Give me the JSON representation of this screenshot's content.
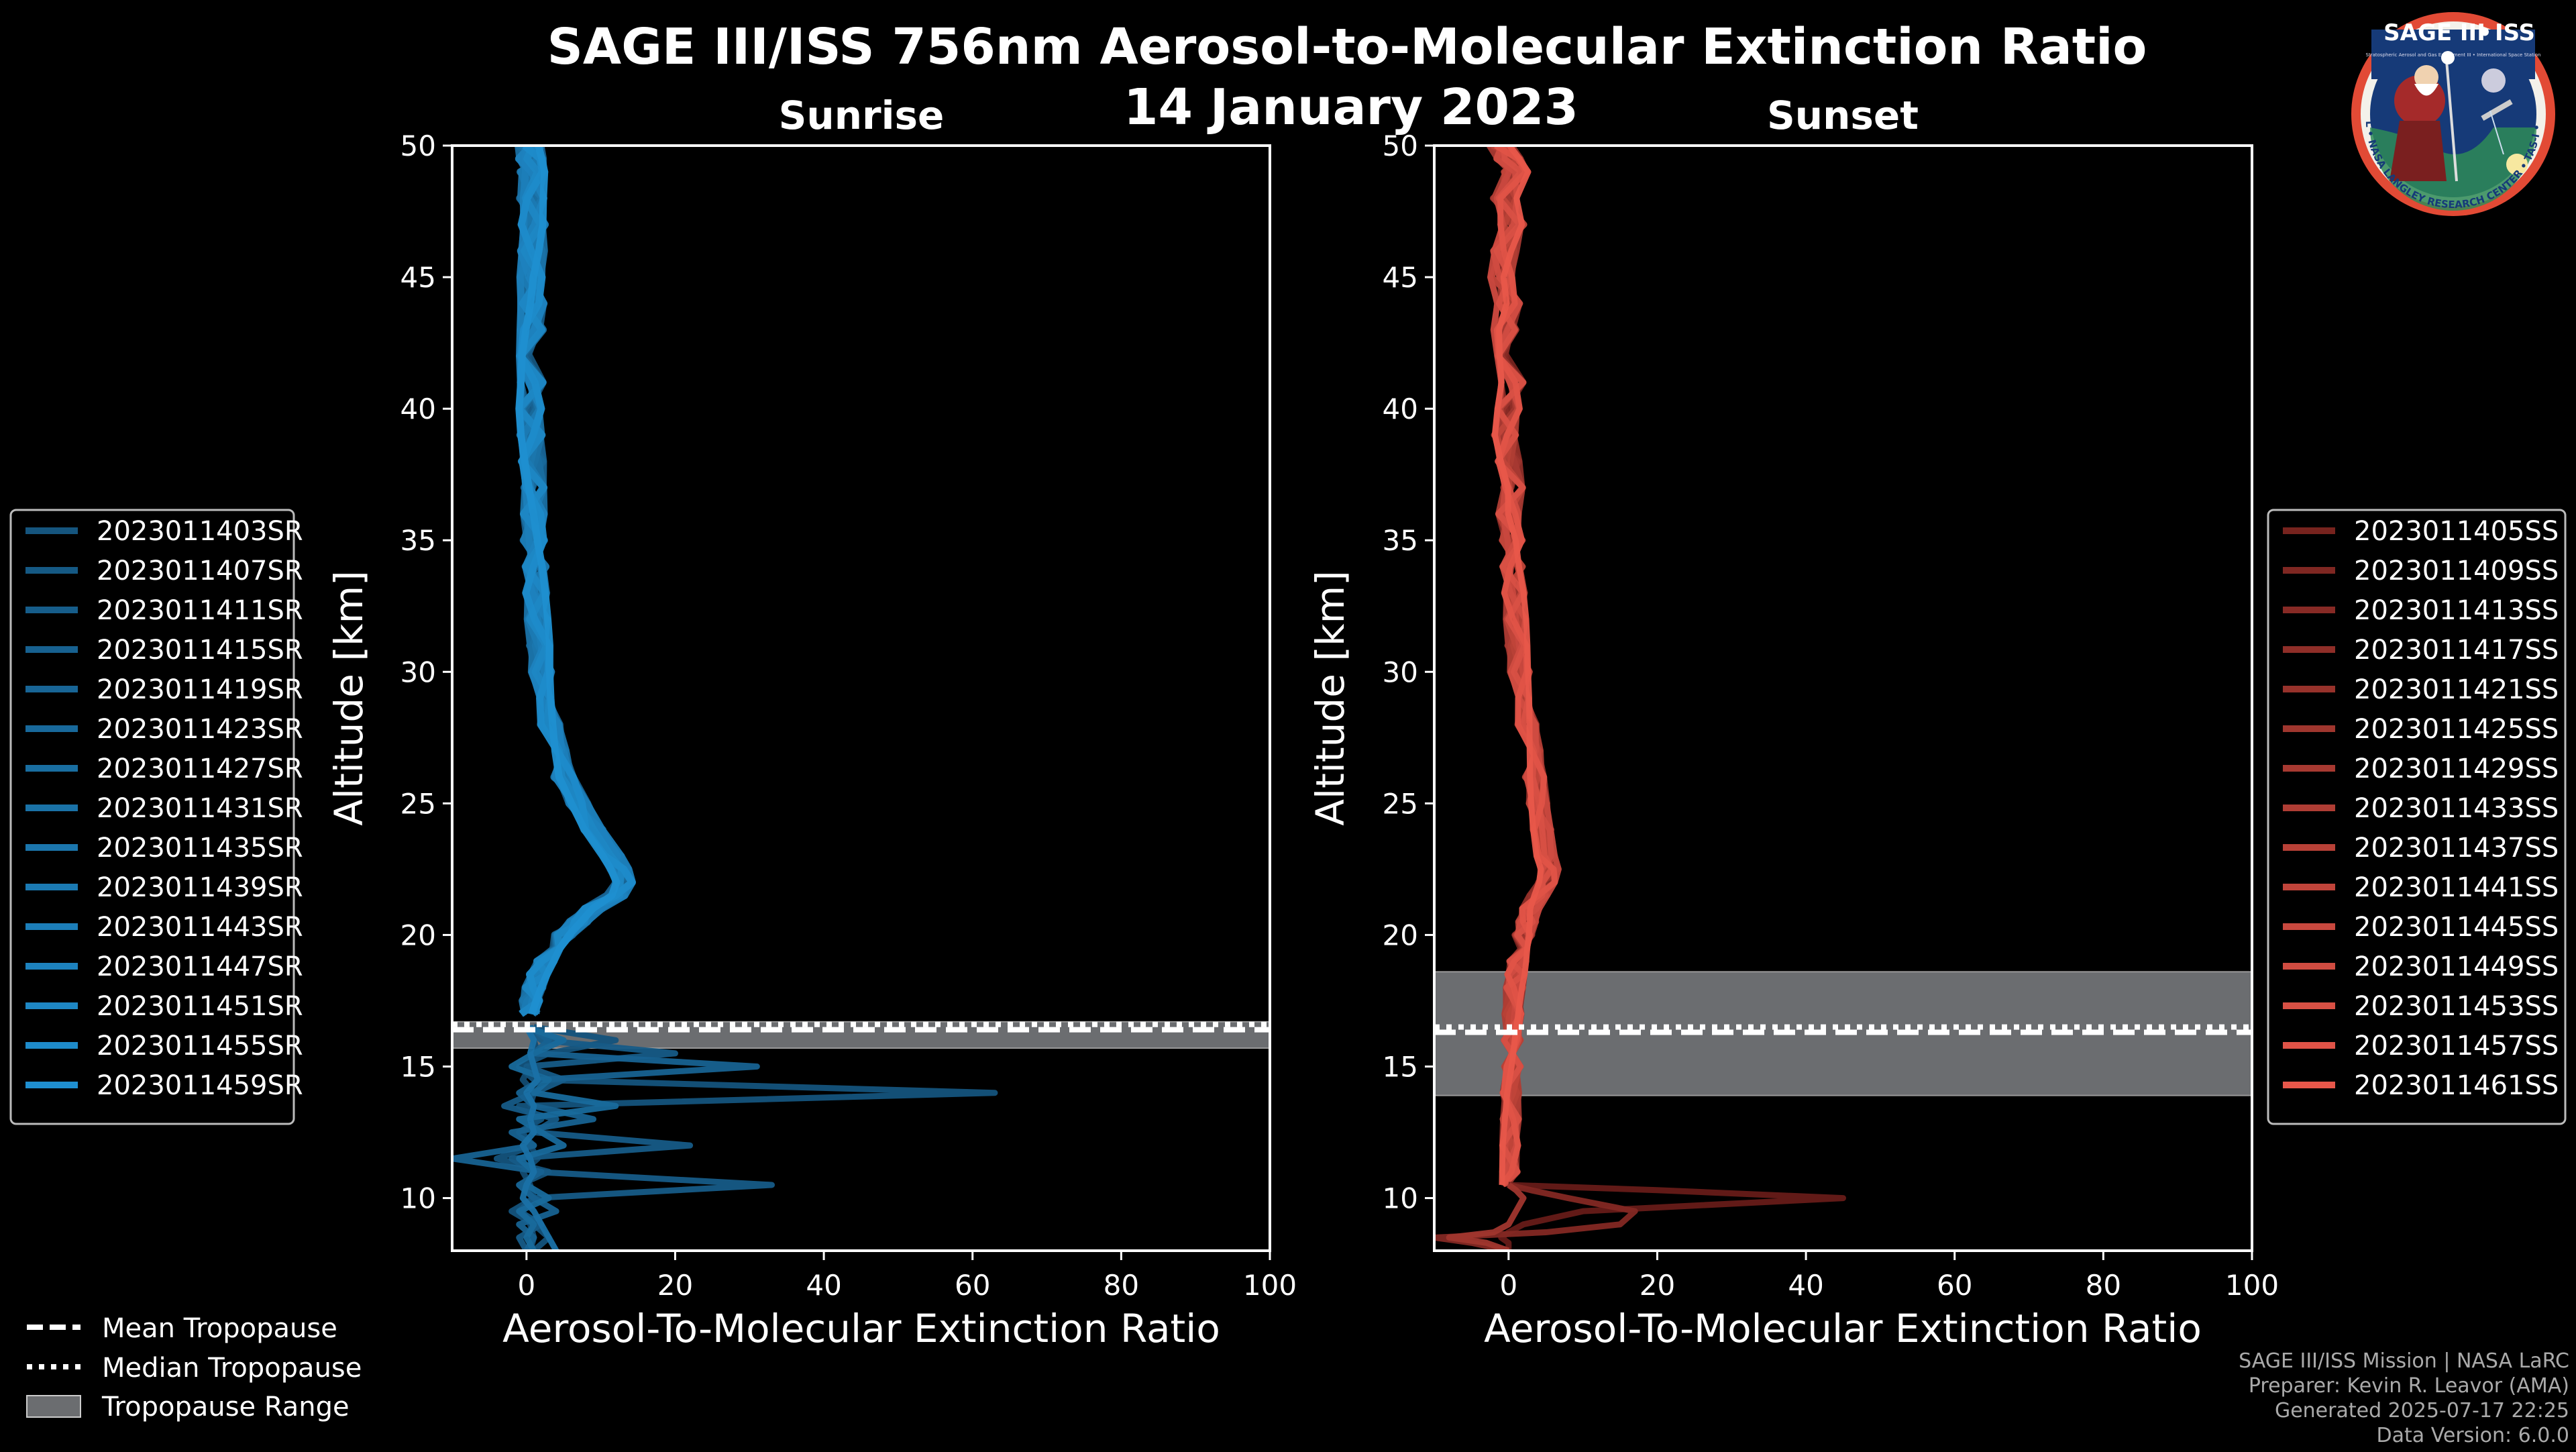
{
  "title": "SAGE III/ISS 756nm Aerosol-to-Molecular Extinction Ratio",
  "date": "14 January 2023",
  "logo": {
    "line1": "SAGE III",
    "sep": "•",
    "line2": "ISS",
    "ring_text": "BALL • NASA LANGLEY RESEARCH CENTER • TAS-I • ESA",
    "stamp_text": "Stratospheric Aerosol and Gas Experiment III • International Space Station"
  },
  "footer": {
    "line1": "SAGE III/ISS Mission | NASA LaRC",
    "line2": "Preparer: Kevin R. Leavor (AMA)",
    "line3": "Generated 2025-07-17 22:25",
    "line4": "Data Version: 6.0.0"
  },
  "tropopause_legend": {
    "mean": "Mean Tropopause",
    "median": "Median Tropopause",
    "range": "Tropopause Range"
  },
  "colors": {
    "sunrise": "#1f8fd0",
    "sunset": "#e8574a",
    "range": "#6b6d70"
  },
  "chart_data": [
    {
      "type": "line",
      "title": "Sunrise",
      "xlabel": "Aerosol-To-Molecular Extinction Ratio",
      "ylabel": "Altitude [km]",
      "xlim": [
        -10,
        100
      ],
      "ylim": [
        8,
        50
      ],
      "xticks": [
        0,
        20,
        40,
        60,
        80,
        100
      ],
      "yticks": [
        10,
        15,
        20,
        25,
        30,
        35,
        40,
        45,
        50
      ],
      "tropopause": {
        "mean": 16.4,
        "median": 16.6,
        "range": [
          15.7,
          16.7
        ]
      },
      "legend": [
        "2023011403SR",
        "2023011407SR",
        "2023011411SR",
        "2023011415SR",
        "2023011419SR",
        "2023011423SR",
        "2023011427SR",
        "2023011431SR",
        "2023011435SR",
        "2023011439SR",
        "2023011443SR",
        "2023011447SR",
        "2023011451SR",
        "2023011455SR",
        "2023011459SR"
      ],
      "profile_altitudes_km": [
        50,
        49.5,
        49,
        48,
        47,
        46,
        45,
        44,
        43,
        42,
        41,
        40,
        39,
        38,
        37,
        36,
        35,
        34,
        33,
        32,
        31,
        30,
        29,
        28,
        27,
        26,
        25,
        24,
        23,
        22.5,
        22,
        21.5,
        21,
        20.5,
        20,
        19.5,
        19,
        18.5,
        18,
        17.5,
        17
      ],
      "profile_values": [
        0.5,
        0.6,
        0.8,
        0.7,
        0.9,
        0.8,
        0.6,
        0.8,
        0.7,
        0.6,
        0.7,
        0.5,
        0.6,
        0.8,
        0.9,
        1,
        1,
        1.2,
        1.3,
        1.5,
        1.8,
        2,
        2.5,
        3.2,
        4,
        5,
        7,
        9,
        11.5,
        12.5,
        13,
        12,
        9,
        7,
        5,
        3.5,
        2.5,
        1.6,
        1,
        0.6,
        0.4
      ],
      "lower_series_km": [
        16.5,
        16,
        15.5,
        15,
        14.5,
        14,
        13.5,
        13,
        12.5,
        12,
        11.5,
        11,
        10.5,
        10,
        9.5,
        9,
        8.5,
        8
      ],
      "lower_series": [
        [
          0.5,
          1,
          1.5,
          0.5,
          -0.5,
          1,
          0.5,
          1.5,
          -0.5,
          0.5,
          1.5,
          -0.5,
          0.5,
          1,
          -0.5,
          0.5,
          1,
          0.5
        ],
        [
          1,
          12,
          3,
          -1,
          1,
          63,
          -1,
          2,
          -1,
          1,
          -4,
          3,
          -1,
          1,
          -2,
          1,
          3,
          1
        ],
        [
          0,
          2,
          20,
          0,
          5,
          1,
          -3,
          4,
          1,
          22,
          -2,
          1,
          33,
          1,
          -1,
          2,
          -1,
          0
        ],
        [
          0.5,
          3,
          1,
          31,
          2,
          -1,
          1,
          9,
          -2,
          1,
          -10,
          2,
          -1,
          1,
          4,
          -1,
          1,
          0
        ],
        [
          0,
          5,
          1,
          -2,
          3,
          1,
          12,
          -1,
          2,
          5,
          -1,
          1,
          0,
          3,
          -1,
          1,
          0,
          1
        ],
        [
          0,
          1,
          0.5,
          1,
          1.5,
          0,
          1,
          0.5,
          1,
          -0.5,
          0.5,
          1,
          0,
          -0.5,
          1,
          2,
          3,
          4
        ]
      ]
    },
    {
      "type": "line",
      "title": "Sunset",
      "xlabel": "Aerosol-To-Molecular Extinction Ratio",
      "ylabel": "Altitude [km]",
      "xlim": [
        -10,
        100
      ],
      "ylim": [
        8,
        50
      ],
      "xticks": [
        0,
        20,
        40,
        60,
        80,
        100
      ],
      "yticks": [
        10,
        15,
        20,
        25,
        30,
        35,
        40,
        45,
        50
      ],
      "tropopause": {
        "mean": 16.3,
        "median": 16.5,
        "range": [
          13.9,
          18.6
        ]
      },
      "legend": [
        "2023011405SS",
        "2023011409SS",
        "2023011413SS",
        "2023011417SS",
        "2023011421SS",
        "2023011425SS",
        "2023011429SS",
        "2023011433SS",
        "2023011437SS",
        "2023011441SS",
        "2023011445SS",
        "2023011449SS",
        "2023011453SS",
        "2023011457SS",
        "2023011461SS"
      ],
      "profile_altitudes_km": [
        50,
        49.5,
        49,
        48,
        47,
        46,
        45,
        44,
        43,
        42,
        41,
        40,
        39,
        38,
        37,
        36,
        35,
        34,
        33,
        32,
        31,
        30,
        29,
        28,
        27,
        26,
        25,
        24,
        23,
        22.5,
        22,
        21.5,
        21,
        20.5,
        20,
        19.5,
        19,
        18.5,
        18,
        17,
        16,
        15,
        14,
        13,
        12,
        11,
        10.5
      ],
      "profile_values": [
        -1,
        0,
        1,
        -0.5,
        0.5,
        -0.5,
        -1,
        0,
        -0.5,
        0,
        0.5,
        0,
        -0.5,
        0,
        0.5,
        0,
        0.5,
        0.5,
        0.8,
        1,
        1.2,
        1.5,
        2,
        2.5,
        3,
        3.5,
        4,
        4.5,
        5,
        5.5,
        5,
        4,
        3,
        2.5,
        2,
        1.5,
        1.2,
        1,
        0.8,
        0.6,
        0.5,
        0.5,
        0.3,
        0.3,
        0.2,
        0.2,
        0.1
      ],
      "lower_series_km": [
        10.5,
        10.3,
        10,
        9.5,
        9,
        8.7,
        8.5,
        8.3,
        8
      ],
      "lower_series": [
        [
          0,
          20,
          45,
          10,
          2,
          0,
          -1,
          0,
          0
        ],
        [
          0,
          3,
          8,
          17,
          15,
          5,
          -10,
          -5,
          0
        ],
        [
          0,
          1,
          2,
          1,
          0,
          -2,
          -8,
          -3,
          0
        ]
      ]
    }
  ]
}
